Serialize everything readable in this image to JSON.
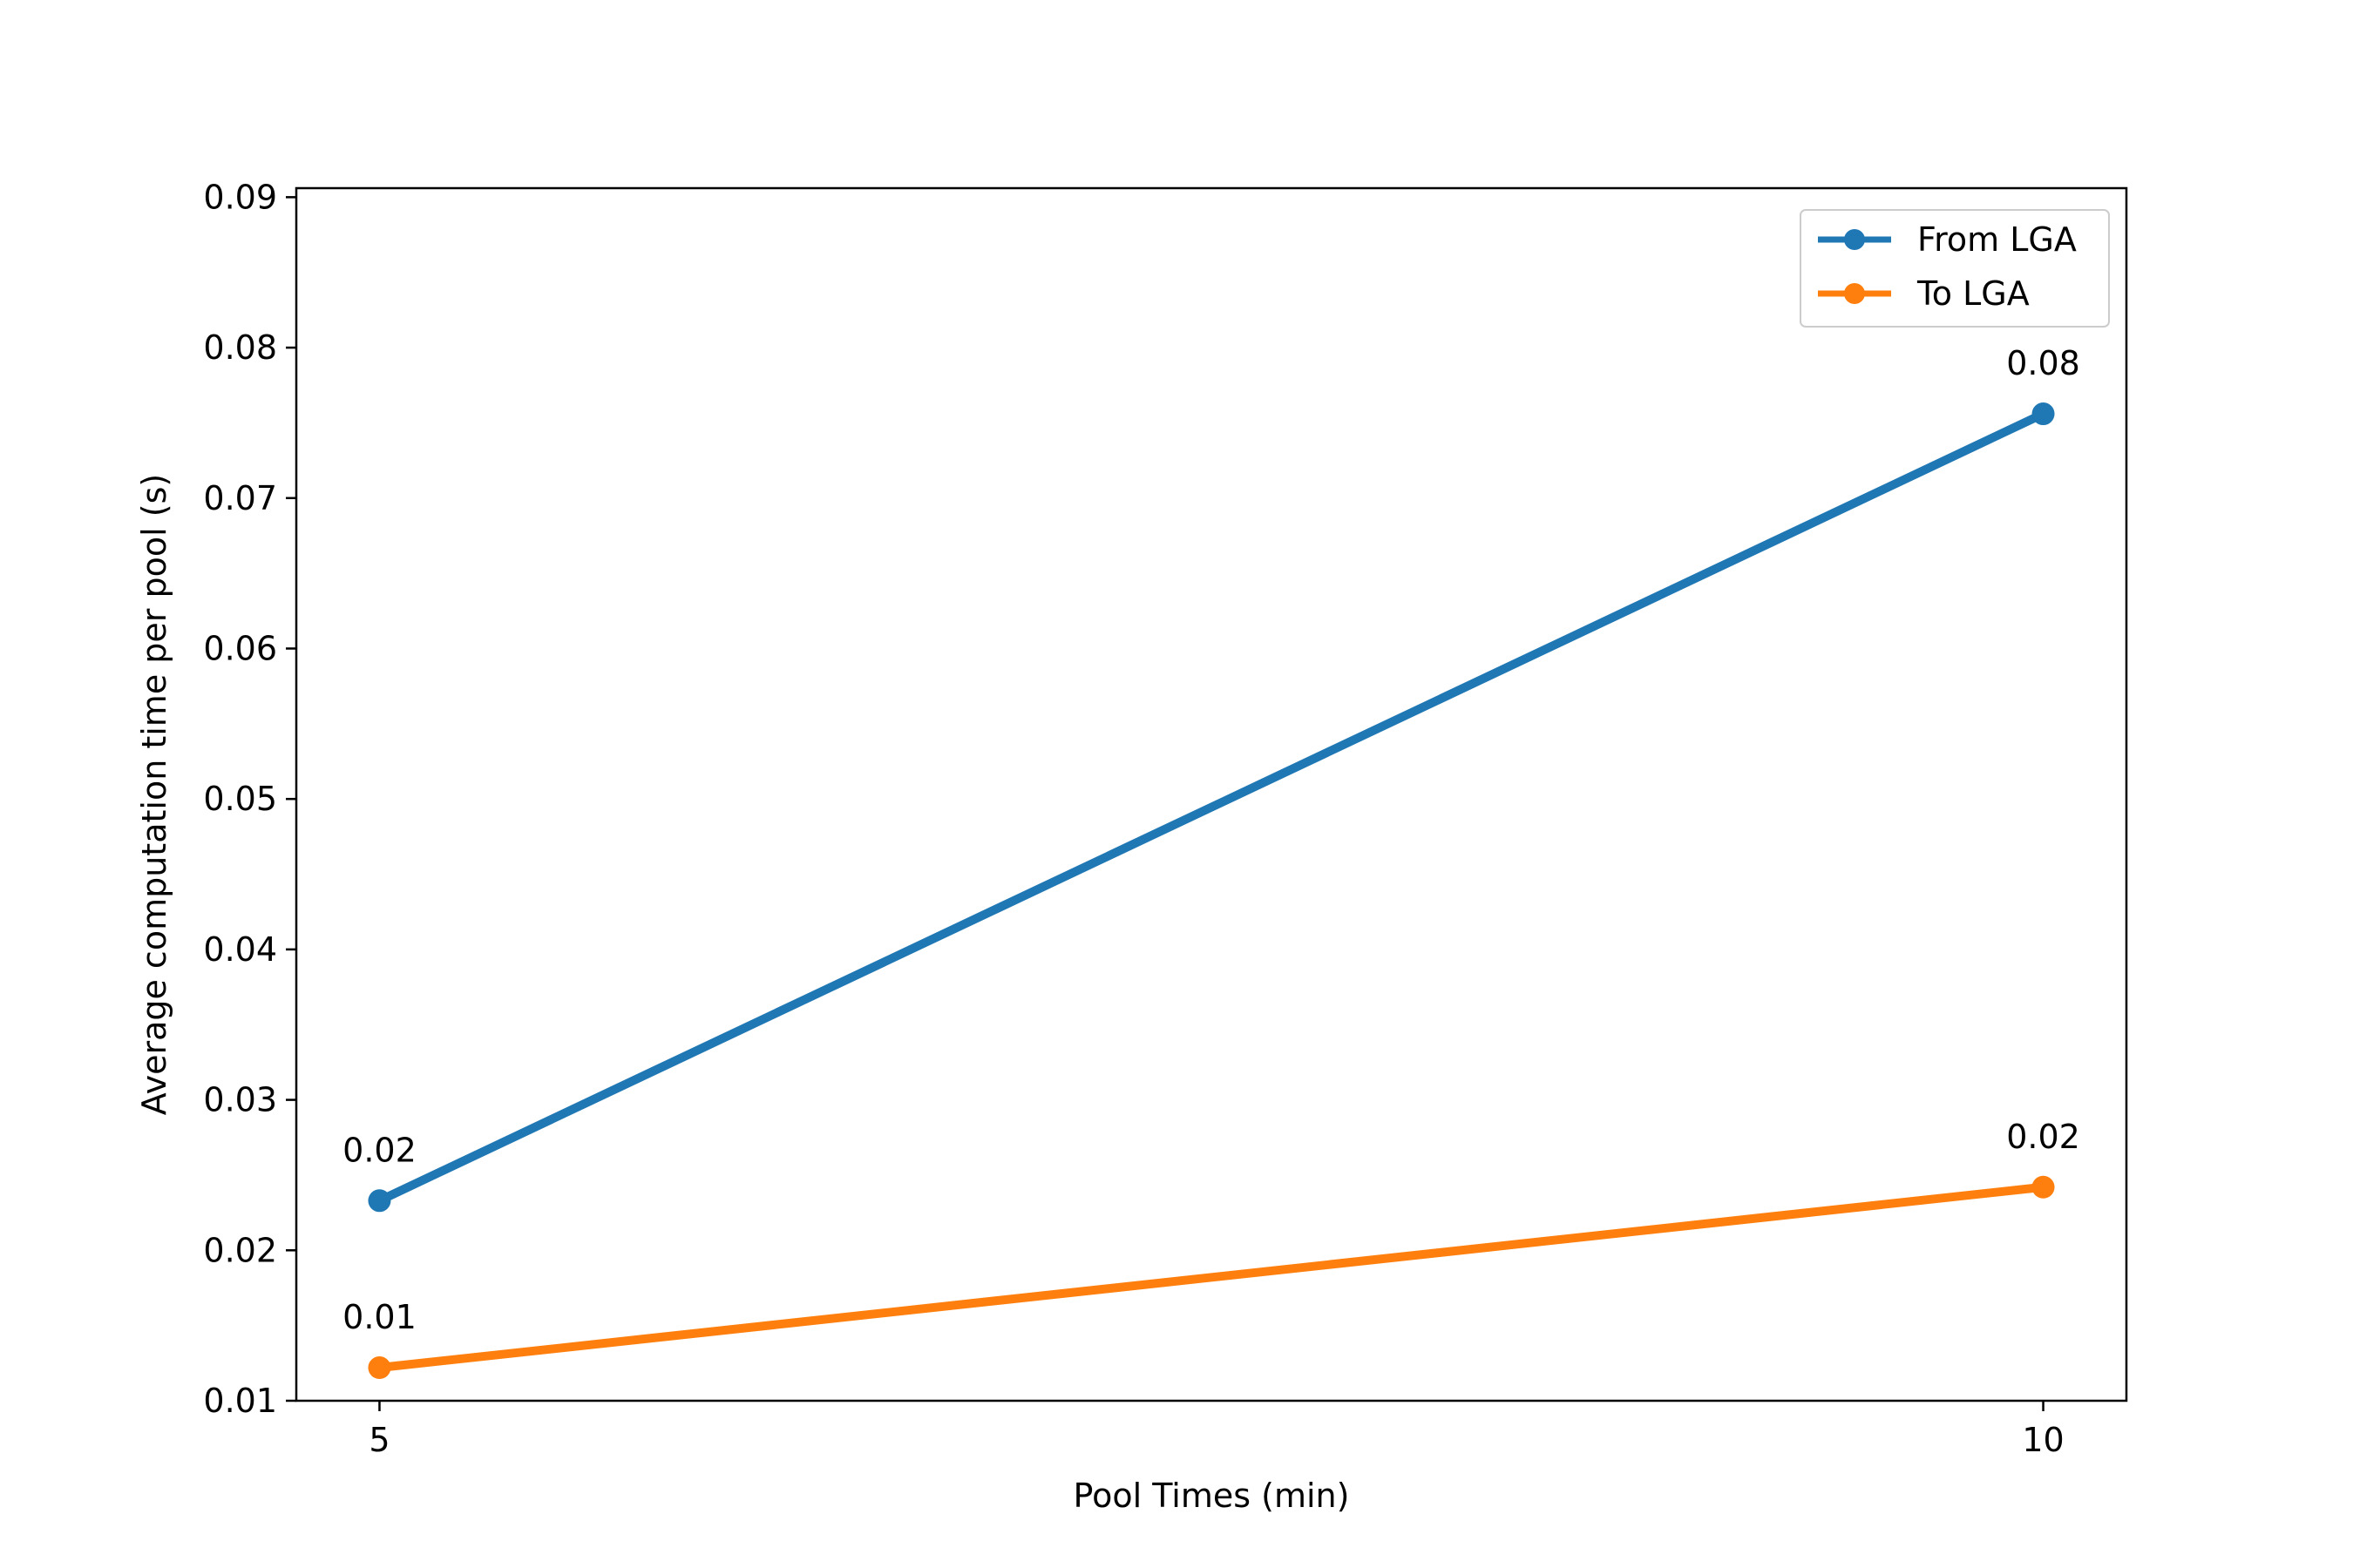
{
  "chart_data": {
    "type": "line",
    "title": "",
    "xlabel": "Pool Times (min)",
    "ylabel": "Average computation time per pool (s)",
    "x": [
      5,
      10
    ],
    "x_ticks": [
      "5",
      "10"
    ],
    "y_ticks": [
      "0.01",
      "0.02",
      "0.03",
      "0.04",
      "0.05",
      "0.06",
      "0.07",
      "0.08",
      "0.09"
    ],
    "xlim": [
      4.75,
      10.25
    ],
    "ylim": [
      0.01,
      0.0906
    ],
    "grid": false,
    "legend_position": "top-right",
    "series": [
      {
        "name": "From LGA",
        "color": "#1f77b4",
        "values": [
          0.0233,
          0.0756
        ],
        "labels": [
          "0.02",
          "0.08"
        ]
      },
      {
        "name": "To LGA",
        "color": "#ff7f0e",
        "values": [
          0.0122,
          0.0242
        ],
        "labels": [
          "0.01",
          "0.02"
        ]
      }
    ]
  }
}
